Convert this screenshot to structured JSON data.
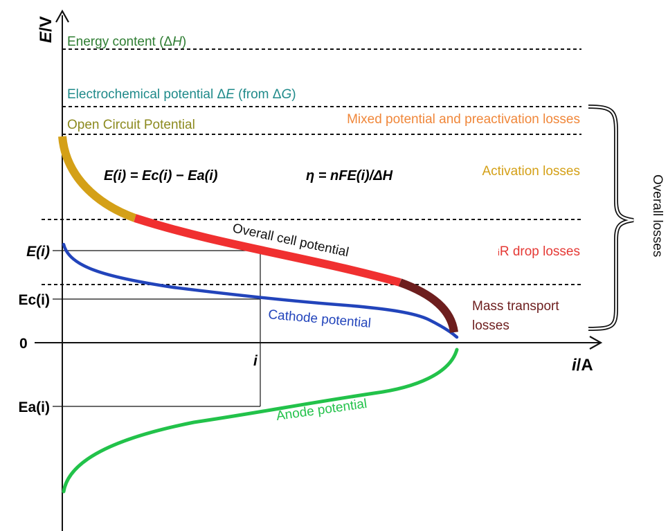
{
  "axes": {
    "y_label_E": "E",
    "y_label_unit": "/V",
    "x_label_i": "i",
    "x_label_unit": "/A",
    "origin_label": "0"
  },
  "levels": {
    "energy_content_text": "Energy content (Δ",
    "energy_content_sym": "H",
    "energy_content_close": ")",
    "electrochemical_text": "Electrochemical potential ΔE (from ΔG)",
    "electrochemical_pre": "Electrochemical potential Δ",
    "electrochemical_sym": "E",
    "electrochemical_mid": " (from Δ",
    "electrochemical_sym2": "G",
    "electrochemical_close": ")",
    "open_circuit": "Open Circuit Potential"
  },
  "losses": {
    "mixed": "Mixed potential and preactivation losses",
    "activation": "Activation losses",
    "ir_sub": "i",
    "ir_rest": "R drop losses",
    "mass_line1": "Mass transport",
    "mass_line2": "losses",
    "overall": "Overall losses"
  },
  "equations": {
    "eq1": "E(i) = Ec(i) − Ea(i)",
    "eq2": "η = nFE(i)/ΔH"
  },
  "tick_labels": {
    "E_i": "E(i)",
    "Ec_i": "Ec(i)",
    "Ea_i": "Ea(i)",
    "i": "i"
  },
  "curves": {
    "overall": "Overall cell potential",
    "cathode": "Cathode potential",
    "anode": "Anode potential"
  },
  "colors": {
    "energy": "#2e7d32",
    "electrochemical": "#1f8a8a",
    "ocp": "#8c8a1f",
    "mixed": "#f0873a",
    "activation": "#d4a017",
    "ir": "#e53935",
    "mass": "#6d1e1e",
    "cathode": "#2244bb",
    "anode": "#22c24a"
  }
}
